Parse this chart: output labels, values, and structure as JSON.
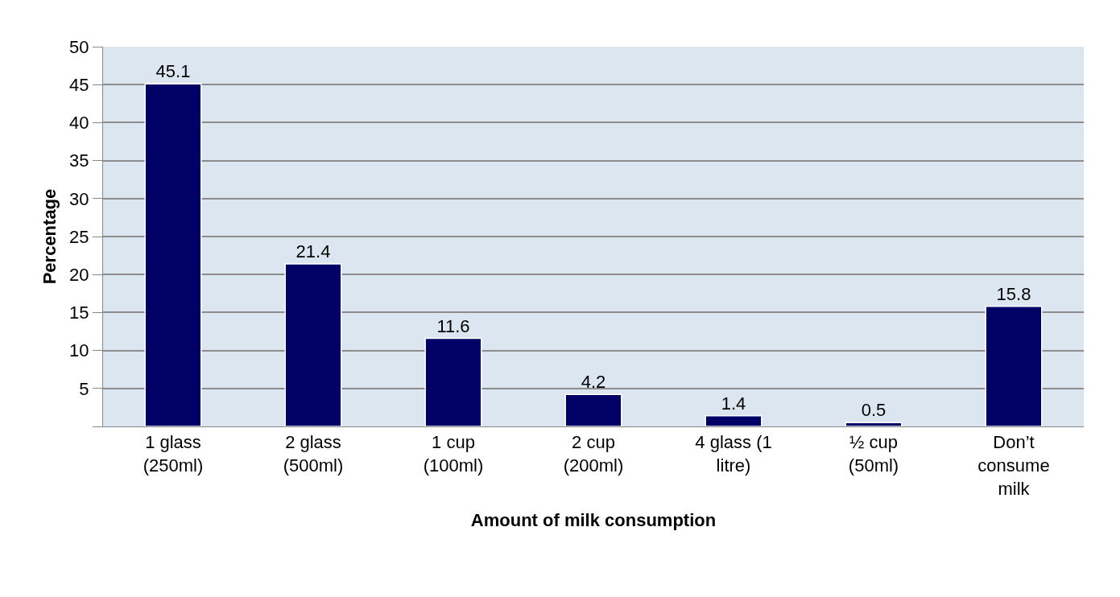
{
  "chart_data": {
    "type": "bar",
    "xlabel": "Amount of milk consumption",
    "ylabel": "Percentage",
    "categories": [
      "1 glass\n(250ml)",
      "2 glass\n(500ml)",
      "1 cup\n(100ml)",
      "2 cup\n(200ml)",
      "4 glass (1\nlitre)",
      "½ cup\n(50ml)",
      "Don’t\nconsume\nmilk"
    ],
    "values": [
      45.1,
      21.4,
      11.6,
      4.2,
      1.4,
      0.5,
      15.8
    ],
    "color": "#000066",
    "ylim": [
      0,
      50
    ],
    "yticks": [
      {
        "value": 0,
        "label": null
      },
      5,
      10,
      15,
      20,
      25,
      30,
      35,
      40,
      45,
      50
    ],
    "grid": "y",
    "data_labels": true
  }
}
